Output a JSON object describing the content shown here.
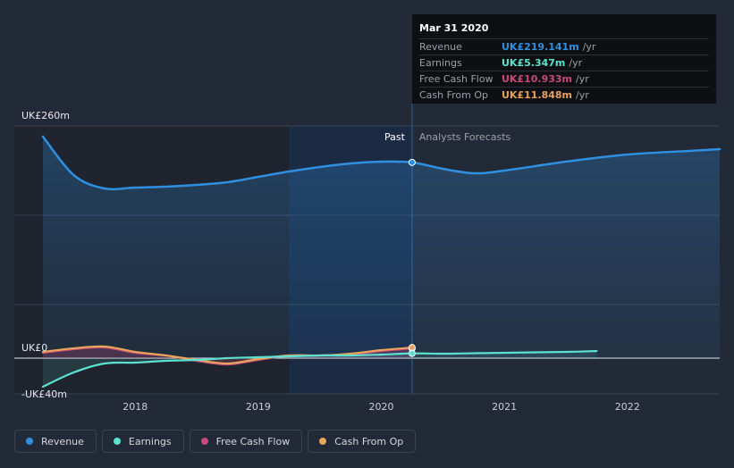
{
  "chart_data": {
    "type": "line",
    "y_labels": [
      "UK£260m",
      "UK£0",
      "-UK£40m"
    ],
    "x_ticks": [
      "2018",
      "2019",
      "2020",
      "2021",
      "2022"
    ],
    "past_label": "Past",
    "forecast_label": "Analysts Forecasts",
    "series": [
      {
        "name": "Revenue",
        "color": "#2f8fe0",
        "points": [
          [
            2017.25,
            248
          ],
          [
            2017.5,
            205
          ],
          [
            2017.75,
            190
          ],
          [
            2018.0,
            191
          ],
          [
            2018.25,
            192
          ],
          [
            2018.5,
            194
          ],
          [
            2018.75,
            197
          ],
          [
            2019.0,
            203
          ],
          [
            2019.25,
            209
          ],
          [
            2019.5,
            214
          ],
          [
            2019.75,
            218
          ],
          [
            2020.0,
            220
          ],
          [
            2020.25,
            219.141
          ],
          [
            2020.5,
            212
          ],
          [
            2020.75,
            207
          ],
          [
            2021.0,
            210
          ],
          [
            2021.5,
            220
          ],
          [
            2022.0,
            228
          ],
          [
            2022.5,
            232
          ],
          [
            2022.75,
            234
          ]
        ]
      },
      {
        "name": "Earnings",
        "color": "#5ce1d0",
        "points": [
          [
            2017.25,
            -32
          ],
          [
            2017.5,
            -16
          ],
          [
            2017.75,
            -6
          ],
          [
            2018.0,
            -5
          ],
          [
            2018.25,
            -3
          ],
          [
            2018.5,
            -2
          ],
          [
            2018.75,
            0
          ],
          [
            2019.0,
            1
          ],
          [
            2019.25,
            2
          ],
          [
            2019.5,
            3
          ],
          [
            2019.75,
            3
          ],
          [
            2020.0,
            4
          ],
          [
            2020.25,
            5.347
          ],
          [
            2020.5,
            5
          ],
          [
            2020.75,
            5.5
          ],
          [
            2021.0,
            6
          ],
          [
            2021.5,
            7
          ],
          [
            2021.75,
            8
          ]
        ]
      },
      {
        "name": "Free Cash Flow",
        "color": "#c8497a",
        "points": [
          [
            2017.25,
            6
          ],
          [
            2017.5,
            10
          ],
          [
            2017.75,
            12
          ],
          [
            2018.0,
            6
          ],
          [
            2018.25,
            3
          ],
          [
            2018.5,
            -3
          ],
          [
            2018.75,
            -7
          ],
          [
            2019.0,
            -2
          ],
          [
            2019.25,
            3
          ],
          [
            2019.5,
            3
          ],
          [
            2019.75,
            4
          ],
          [
            2020.0,
            8
          ],
          [
            2020.25,
            10.933
          ]
        ]
      },
      {
        "name": "Cash From Op",
        "color": "#e8a35c",
        "points": [
          [
            2017.25,
            7
          ],
          [
            2017.5,
            11
          ],
          [
            2017.75,
            13
          ],
          [
            2018.0,
            7
          ],
          [
            2018.25,
            3
          ],
          [
            2018.5,
            -2
          ],
          [
            2018.75,
            -6
          ],
          [
            2019.0,
            -1
          ],
          [
            2019.25,
            3
          ],
          [
            2019.5,
            3
          ],
          [
            2019.75,
            5
          ],
          [
            2020.0,
            9
          ],
          [
            2020.25,
            11.848
          ]
        ]
      }
    ],
    "tooltip": {
      "date": "Mar 31 2020",
      "rows": [
        {
          "name": "Revenue",
          "value": "UK£219.141m",
          "unit": "/yr",
          "color": "#2f8fe0"
        },
        {
          "name": "Earnings",
          "value": "UK£5.347m",
          "unit": "/yr",
          "color": "#5ce1d0"
        },
        {
          "name": "Free Cash Flow",
          "value": "UK£10.933m",
          "unit": "/yr",
          "color": "#c8497a"
        },
        {
          "name": "Cash From Op",
          "value": "UK£11.848m",
          "unit": "/yr",
          "color": "#e8a35c"
        }
      ]
    },
    "legend": [
      {
        "name": "Revenue",
        "color": "#2f8fe0"
      },
      {
        "name": "Earnings",
        "color": "#5ce1d0"
      },
      {
        "name": "Free Cash Flow",
        "color": "#c8497a"
      },
      {
        "name": "Cash From Op",
        "color": "#e8a35c"
      }
    ]
  }
}
